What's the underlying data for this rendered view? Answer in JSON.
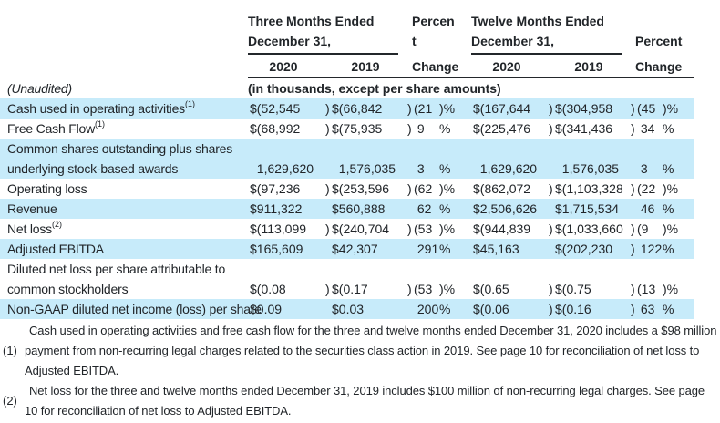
{
  "colors": {
    "highlight": "#c7ebfa",
    "rule": "#23272b",
    "text": "#212529"
  },
  "header": {
    "three": {
      "line1": "Three Months Ended",
      "line2": "December 31,"
    },
    "pct1": {
      "line1": "Percen",
      "line2": "t",
      "line3": "Change"
    },
    "twelve": {
      "line1": "Twelve Months Ended",
      "line2": "December 31,"
    },
    "pct2": {
      "line2": "Percent",
      "line3": "Change"
    },
    "years": [
      "2020",
      "2019",
      "2020",
      "2019"
    ]
  },
  "table": {
    "rows": [
      {
        "label": "(Unaudited)",
        "note": "(in thousands, except per share amounts)",
        "hl": false
      },
      {
        "label": "Cash used in operating activities",
        "sup": "(1)",
        "hl": true,
        "cells": [
          "$(52,545",
          ")",
          "$(66,842",
          ")",
          "(21",
          ")%",
          "$(167,644",
          ")",
          "$(304,958",
          ")",
          "(45",
          ")%"
        ]
      },
      {
        "label": "Free Cash Flow",
        "sup": "(1)",
        "hl": false,
        "cells": [
          "$(68,992",
          ")",
          "$(75,935",
          ")",
          " 9",
          "%",
          "$(225,476",
          ")",
          "$(341,436",
          ")",
          " 34",
          "%"
        ]
      },
      {
        "label": "Common shares outstanding plus shares",
        "hl": true,
        "cells": [
          "",
          "",
          "",
          "",
          "",
          "",
          "",
          "",
          "",
          "",
          "",
          ""
        ]
      },
      {
        "label": "underlying stock-based awards",
        "hl": true,
        "cells": [
          "  1,629,620",
          "",
          "  1,576,035",
          "",
          " 3",
          "%",
          "  1,629,620",
          "",
          "  1,576,035",
          "",
          " 3",
          "%"
        ]
      },
      {
        "label": "Operating loss",
        "hl": false,
        "cells": [
          "$(97,236",
          ")",
          "$(253,596",
          ")",
          "(62",
          ")%",
          "$(862,072",
          ")",
          "$(1,103,328",
          ")",
          "(22",
          ")%"
        ]
      },
      {
        "label": "Revenue",
        "hl": true,
        "cells": [
          "$911,322",
          "",
          "$560,888",
          "",
          " 62",
          "%",
          "$2,506,626",
          "",
          "$1,715,534",
          "",
          " 46",
          "%"
        ]
      },
      {
        "label": "Net loss",
        "sup": "(2)",
        "hl": false,
        "cells": [
          "$(113,099",
          ")",
          "$(240,704",
          ")",
          "(53",
          ")%",
          "$(944,839",
          ")",
          "$(1,033,660",
          ")",
          "(9",
          ")%"
        ]
      },
      {
        "label": "Adjusted EBITDA",
        "hl": true,
        "cells": [
          "$165,609",
          "",
          "$42,307",
          "",
          " 291",
          "%",
          "$45,163",
          "",
          "$(202,230",
          ")",
          " 122",
          "%"
        ]
      },
      {
        "label": "Diluted net loss per share attributable to",
        "hl": false,
        "cells": [
          "",
          "",
          "",
          "",
          "",
          "",
          "",
          "",
          "",
          "",
          "",
          ""
        ]
      },
      {
        "label": "common stockholders",
        "hl": false,
        "cells": [
          "$(0.08",
          ")",
          "$(0.17",
          ")",
          "(53",
          ")%",
          "$(0.65",
          ")",
          "$(0.75",
          ")",
          "(13",
          ")%"
        ]
      },
      {
        "label": "Non-GAAP diluted net income (loss) per share",
        "hl": true,
        "cells": [
          "$0.09",
          "",
          "$0.03",
          "",
          " 200",
          "%",
          "$(0.06",
          ")",
          "$(0.16",
          ")",
          " 63",
          "%"
        ]
      }
    ]
  },
  "footnotes": [
    {
      "marker": "(1)",
      "text": "Cash used in operating activities and free cash flow for the three and twelve months ended December 31, 2020 includes a $98 million payment from non-recurring legal charges related to the securities class action in 2019. See page 10 for reconciliation of net loss to Adjusted EBITDA."
    },
    {
      "marker": "(2)",
      "text": "Net loss for the three and twelve months ended December 31, 2019 includes $100 million of non-recurring legal charges. See page 10 for reconciliation of net loss to Adjusted EBITDA."
    }
  ]
}
